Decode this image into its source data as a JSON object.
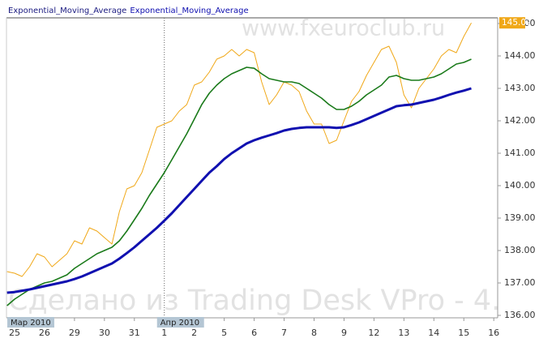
{
  "chart_data": {
    "type": "line",
    "watermark_top": "www.fxeuroclub.ru",
    "watermark_bottom": "Сделано из Trading Desk VPro - 4.",
    "month_labels": [
      "Мар 2010",
      "Апр 2010"
    ],
    "last_price": {
      "value": 145.02,
      "label": "145.02"
    },
    "xlim": [
      -0.27,
      16.13
    ],
    "xticks": [
      {
        "value": 0,
        "label": "25"
      },
      {
        "value": 1,
        "label": "26"
      },
      {
        "value": 2,
        "label": "29"
      },
      {
        "value": 3,
        "label": "30"
      },
      {
        "value": 4,
        "label": "31"
      },
      {
        "value": 5,
        "label": "1"
      },
      {
        "value": 6,
        "label": "2"
      },
      {
        "value": 7,
        "label": "5"
      },
      {
        "value": 8,
        "label": "6"
      },
      {
        "value": 9,
        "label": "7"
      },
      {
        "value": 10,
        "label": "8"
      },
      {
        "value": 11,
        "label": "9"
      },
      {
        "value": 12,
        "label": "12"
      },
      {
        "value": 13,
        "label": "13"
      },
      {
        "value": 14,
        "label": "14"
      },
      {
        "value": 15,
        "label": "15"
      },
      {
        "value": 16,
        "label": "16"
      }
    ],
    "ylim": [
      135.925,
      145.175
    ],
    "yticks": [
      {
        "value": 136,
        "label": "136.00"
      },
      {
        "value": 137,
        "label": "137.00"
      },
      {
        "value": 138,
        "label": "138.00"
      },
      {
        "value": 139,
        "label": "139.00"
      },
      {
        "value": 140,
        "label": "140.00"
      },
      {
        "value": 141,
        "label": "141.00"
      },
      {
        "value": 142,
        "label": "142.00"
      },
      {
        "value": 143,
        "label": "143.00"
      },
      {
        "value": 144,
        "label": "144.00"
      },
      {
        "value": 145,
        "label": "145.00"
      }
    ],
    "x": [
      -0.25,
      0,
      0.25,
      0.5,
      0.75,
      1,
      1.25,
      1.5,
      1.75,
      2,
      2.25,
      2.5,
      2.75,
      3,
      3.25,
      3.5,
      3.75,
      4,
      4.25,
      4.5,
      4.75,
      5,
      5.25,
      5.5,
      5.75,
      6,
      6.25,
      6.5,
      6.75,
      7,
      7.25,
      7.5,
      7.75,
      8,
      8.25,
      8.5,
      8.75,
      9,
      9.25,
      9.5,
      9.75,
      10,
      10.25,
      10.5,
      10.75,
      11,
      11.25,
      11.5,
      11.75,
      12,
      12.25,
      12.5,
      12.75,
      13,
      13.25,
      13.5,
      13.75,
      14,
      14.25,
      14.5,
      14.75,
      15,
      15.25
    ],
    "series": [
      {
        "color": "#f0a818",
        "width": 1,
        "values": [
          137.35,
          137.3,
          137.2,
          137.5,
          137.9,
          137.8,
          137.5,
          137.7,
          137.9,
          138.3,
          138.2,
          138.7,
          138.6,
          138.4,
          138.2,
          139.2,
          139.9,
          140.0,
          140.4,
          141.1,
          141.8,
          141.9,
          142.0,
          142.3,
          142.5,
          143.1,
          143.2,
          143.5,
          143.9,
          144.0,
          144.2,
          144.0,
          144.2,
          144.1,
          143.2,
          142.5,
          142.8,
          143.2,
          143.1,
          142.9,
          142.3,
          141.9,
          141.9,
          141.3,
          141.4,
          142.0,
          142.6,
          142.9,
          143.4,
          143.8,
          144.2,
          144.3,
          143.8,
          142.8,
          142.4,
          143.0,
          143.3,
          143.6,
          144.0,
          144.2,
          144.1,
          144.6,
          145.02
        ]
      },
      {
        "name": "Exponential_Moving_Average",
        "color": "#1a7a1a",
        "width": 1.6,
        "values": [
          136.3,
          136.5,
          136.65,
          136.8,
          136.9,
          137.0,
          137.05,
          137.15,
          137.25,
          137.45,
          137.6,
          137.75,
          137.9,
          138.0,
          138.1,
          138.3,
          138.6,
          138.95,
          139.3,
          139.7,
          140.05,
          140.4,
          140.8,
          141.2,
          141.6,
          142.05,
          142.5,
          142.85,
          143.1,
          143.3,
          143.45,
          143.55,
          143.65,
          143.62,
          143.45,
          143.3,
          143.25,
          143.2,
          143.2,
          143.15,
          143.0,
          142.85,
          142.7,
          142.5,
          142.35,
          142.35,
          142.45,
          142.6,
          142.8,
          142.95,
          143.1,
          143.35,
          143.4,
          143.3,
          143.25,
          143.25,
          143.3,
          143.35,
          143.45,
          143.6,
          143.75,
          143.8,
          143.9
        ]
      },
      {
        "name": "Exponential_Moving_Average",
        "color": "#1010b0",
        "width": 3,
        "values": [
          136.7,
          136.72,
          136.76,
          136.8,
          136.85,
          136.9,
          136.95,
          137.0,
          137.05,
          137.12,
          137.2,
          137.3,
          137.4,
          137.5,
          137.6,
          137.75,
          137.92,
          138.1,
          138.3,
          138.5,
          138.7,
          138.92,
          139.15,
          139.4,
          139.65,
          139.9,
          140.15,
          140.4,
          140.6,
          140.82,
          141.0,
          141.15,
          141.3,
          141.4,
          141.48,
          141.55,
          141.62,
          141.7,
          141.75,
          141.78,
          141.8,
          141.8,
          141.8,
          141.8,
          141.78,
          141.8,
          141.87,
          141.95,
          142.05,
          142.15,
          142.25,
          142.35,
          142.45,
          142.48,
          142.5,
          142.55,
          142.6,
          142.65,
          142.72,
          142.8,
          142.87,
          142.93,
          143.0
        ]
      }
    ]
  }
}
